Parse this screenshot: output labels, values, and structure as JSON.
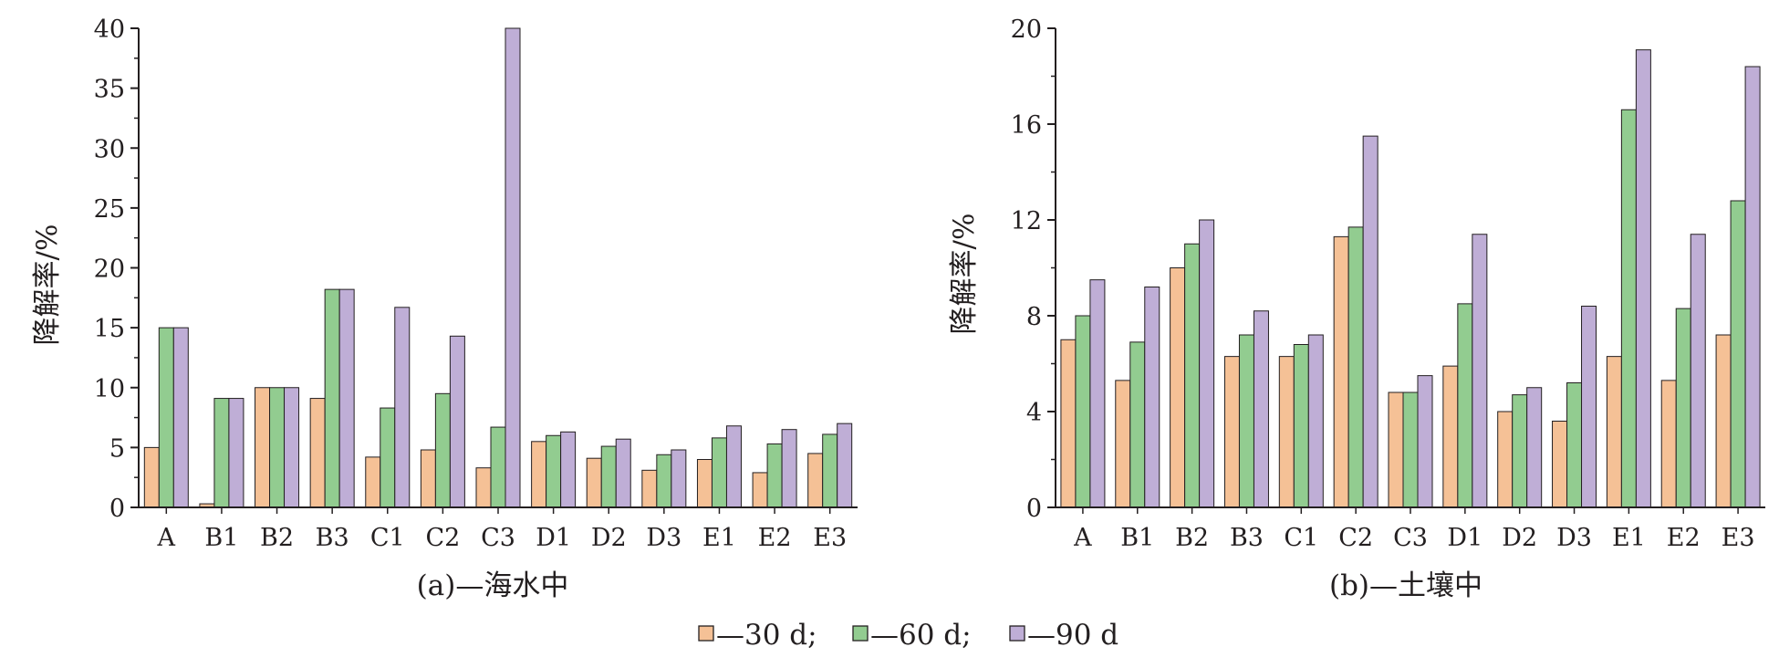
{
  "colors": {
    "d30": "#f5c196",
    "d60": "#92cc90",
    "d90": "#bfaed6",
    "axis": "#231f20"
  },
  "legend": [
    {
      "key": "d30",
      "label": "—30 d;"
    },
    {
      "key": "d60",
      "label": "—60 d;"
    },
    {
      "key": "d90",
      "label": "—90 d"
    }
  ],
  "chart_data": [
    {
      "type": "bar",
      "title": "(a)—海水中",
      "xlabel": "",
      "ylabel": "降解率/%",
      "ylim": [
        0,
        40
      ],
      "yticks": [
        "0",
        "5",
        "10",
        "15",
        "20",
        "25",
        "30",
        "35",
        "40"
      ],
      "categories": [
        "A",
        "B1",
        "B2",
        "B3",
        "C1",
        "C2",
        "C3",
        "D1",
        "D2",
        "D3",
        "E1",
        "E2",
        "E3"
      ],
      "series": [
        {
          "name": "30 d",
          "values": [
            5.0,
            0.3,
            10.0,
            9.1,
            4.2,
            4.8,
            3.3,
            5.5,
            4.1,
            3.1,
            4.0,
            2.9,
            4.5
          ]
        },
        {
          "name": "60 d",
          "values": [
            15.0,
            9.1,
            10.0,
            18.2,
            8.3,
            9.5,
            6.7,
            6.0,
            5.1,
            4.4,
            5.8,
            5.3,
            6.1
          ]
        },
        {
          "name": "90 d",
          "values": [
            15.0,
            9.1,
            10.0,
            18.2,
            16.7,
            14.3,
            40.0,
            6.3,
            5.7,
            4.8,
            6.8,
            6.5,
            7.0
          ]
        }
      ],
      "grid": false,
      "legend_position": "bottom-center"
    },
    {
      "type": "bar",
      "title": "(b)—土壤中",
      "xlabel": "",
      "ylabel": "降解率/%",
      "ylim": [
        0,
        20
      ],
      "yticks": [
        "0",
        "4",
        "8",
        "12",
        "16",
        "20"
      ],
      "categories": [
        "A",
        "B1",
        "B2",
        "B3",
        "C1",
        "C2",
        "C3",
        "D1",
        "D2",
        "D3",
        "E1",
        "E2",
        "E3"
      ],
      "series": [
        {
          "name": "30 d",
          "values": [
            7.0,
            5.3,
            10.0,
            6.3,
            6.3,
            11.3,
            4.8,
            5.9,
            4.0,
            3.6,
            6.3,
            5.3,
            7.2
          ]
        },
        {
          "name": "60 d",
          "values": [
            8.0,
            6.9,
            11.0,
            7.2,
            6.8,
            11.7,
            4.8,
            8.5,
            4.7,
            5.2,
            16.6,
            8.3,
            12.8
          ]
        },
        {
          "name": "90 d",
          "values": [
            9.5,
            9.2,
            12.0,
            8.2,
            7.2,
            15.5,
            5.5,
            11.4,
            5.0,
            8.4,
            19.1,
            11.4,
            18.4
          ]
        }
      ],
      "grid": false,
      "legend_position": "bottom-center"
    }
  ]
}
